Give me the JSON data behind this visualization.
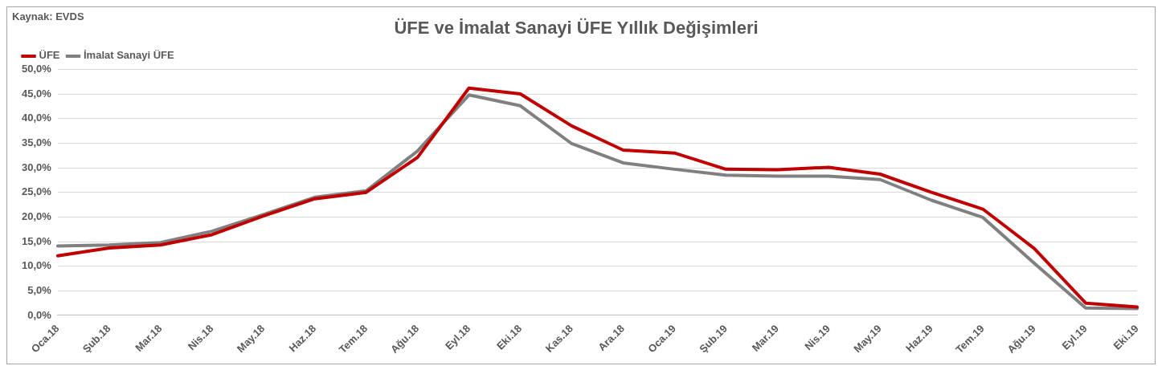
{
  "chart_data": {
    "type": "line",
    "title": "ÜFE ve İmalat Sanayi ÜFE Yıllık Değişimleri",
    "annotations": [
      "Kaynak: EVDS"
    ],
    "categories": [
      "Oca.18",
      "Şub.18",
      "Mar.18",
      "Nis.18",
      "May.18",
      "Haz.18",
      "Tem.18",
      "Ağu.18",
      "Eyl.18",
      "Eki.18",
      "Kas.18",
      "Ara.18",
      "Oca.19",
      "Şub.19",
      "Mar.19",
      "Nis.19",
      "May.19",
      "Haz.19",
      "Tem.19",
      "Ağu.19",
      "Eyl.19",
      "Eki.19"
    ],
    "series": [
      {
        "name": "ÜFE",
        "color": "#c00000",
        "values": [
          12.1,
          13.7,
          14.3,
          16.4,
          20.2,
          23.7,
          25.0,
          32.1,
          46.2,
          45.0,
          38.5,
          33.6,
          33.0,
          29.7,
          29.6,
          30.1,
          28.7,
          25.0,
          21.6,
          13.6,
          2.5,
          1.7
        ]
      },
      {
        "name": "İmalat Sanayi ÜFE",
        "color": "#808080",
        "values": [
          14.1,
          14.3,
          14.8,
          17.1,
          20.5,
          24.0,
          25.3,
          33.4,
          44.8,
          42.6,
          34.9,
          31.0,
          29.7,
          28.5,
          28.3,
          28.3,
          27.6,
          23.4,
          19.9,
          10.6,
          1.5,
          1.4
        ]
      }
    ],
    "ylim": [
      0,
      50
    ],
    "yticks": [
      {
        "value": 0,
        "label": "0,0%"
      },
      {
        "value": 5,
        "label": "5,0%"
      },
      {
        "value": 10,
        "label": "10,0%"
      },
      {
        "value": 15,
        "label": "15,0%"
      },
      {
        "value": 20,
        "label": "20,0%"
      },
      {
        "value": 25,
        "label": "25,0%"
      },
      {
        "value": 30,
        "label": "30,0%"
      },
      {
        "value": 35,
        "label": "35,0%"
      },
      {
        "value": 40,
        "label": "40,0%"
      },
      {
        "value": 45,
        "label": "45,0%"
      },
      {
        "value": 50,
        "label": "50,0%"
      }
    ],
    "grid": "y",
    "legend": "top left",
    "marker": "none",
    "line_style": "solid"
  }
}
